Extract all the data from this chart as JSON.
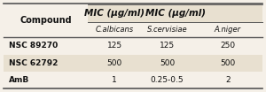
{
  "title": "MIC (μg/ml)",
  "col_headers": [
    "C.albicans",
    "S.cervisiae",
    "A.niger"
  ],
  "row_headers": [
    "Compound",
    "NSC 89270",
    "NSC 62792",
    "AmB"
  ],
  "rows": [
    [
      "125",
      "125",
      "250"
    ],
    [
      "500",
      "500",
      "500"
    ],
    [
      "1",
      "0.25-0.5",
      "2"
    ]
  ],
  "bg_color": "#f5f0e8",
  "header_color": "#e8e0d0",
  "row_colors": [
    "#f5f0e8",
    "#e8e0d0",
    "#f5f0e8"
  ],
  "line_color": "#555555",
  "text_color": "#111111"
}
